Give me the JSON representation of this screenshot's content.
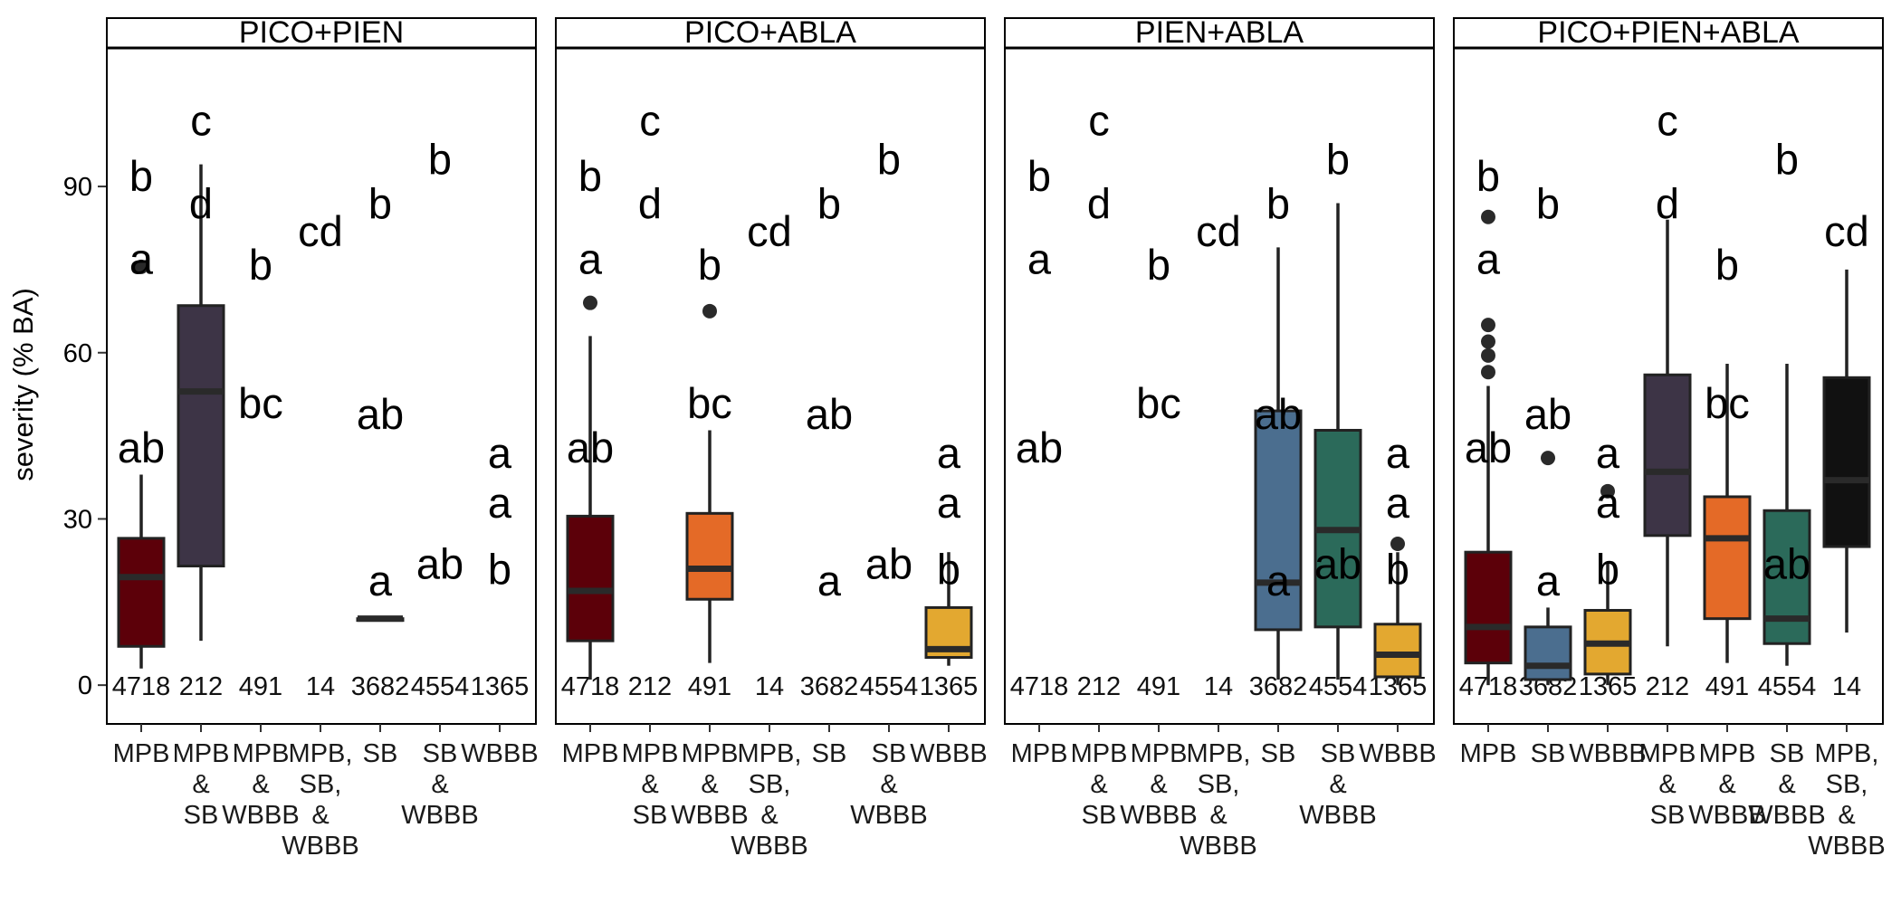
{
  "chart_data": {
    "type": "boxplot",
    "ylabel": "severity (% BA)",
    "ylim": [
      -7,
      115
    ],
    "y_ticks": [
      0,
      30,
      60,
      90
    ],
    "colors": {
      "MPB": "#5c0009",
      "MPB & SB": "#3d3446",
      "MPB & WBBB": "#e46a27",
      "MPB, SB, & WBBB": "#111111",
      "SB": "#4b6e8f",
      "SB & WBBB": "#2b6a5a",
      "WBBB": "#e3a830"
    },
    "panels": [
      {
        "title": "PICO+PIEN",
        "categories": [
          {
            "label_lines": [
              "MPB"
            ],
            "count": "4718",
            "box": {
              "q1": 7,
              "median": 19.5,
              "q3": 26.5,
              "lo": 3,
              "hi": 38,
              "outliers": [
                75.5
              ]
            }
          },
          {
            "label_lines": [
              "MPB",
              "&",
              "SB"
            ],
            "count": "212",
            "box": {
              "q1": 21.5,
              "median": 53,
              "q3": 68.5,
              "lo": 8,
              "hi": 94,
              "outliers": []
            }
          },
          {
            "label_lines": [
              "MPB",
              "&",
              "WBBB"
            ],
            "count": "491",
            "box": null
          },
          {
            "label_lines": [
              "MPB,",
              "SB,",
              "&",
              "WBBB"
            ],
            "count": "14",
            "box": null
          },
          {
            "label_lines": [
              "SB"
            ],
            "count": "3682",
            "box": {
              "q1": 12,
              "median": 12,
              "q3": 12,
              "lo": 12,
              "hi": 12,
              "outliers": []
            }
          },
          {
            "label_lines": [
              "SB",
              "&",
              "WBBB"
            ],
            "count": "4554",
            "box": null
          },
          {
            "label_lines": [
              "WBBB"
            ],
            "count": "1365",
            "box": null
          }
        ],
        "letters": [
          {
            "cat": 0,
            "y": 92,
            "text": "b"
          },
          {
            "cat": 0,
            "y": 77,
            "text": "a"
          },
          {
            "cat": 0,
            "y": 43,
            "text": "ab"
          },
          {
            "cat": 1,
            "y": 102,
            "text": "c"
          },
          {
            "cat": 1,
            "y": 87,
            "text": "d"
          },
          {
            "cat": 2,
            "y": 76,
            "text": "b"
          },
          {
            "cat": 2,
            "y": 51,
            "text": "bc"
          },
          {
            "cat": 3,
            "y": 82,
            "text": "cd"
          },
          {
            "cat": 4,
            "y": 87,
            "text": "b"
          },
          {
            "cat": 4,
            "y": 49,
            "text": "ab"
          },
          {
            "cat": 4,
            "y": 19,
            "text": "a"
          },
          {
            "cat": 5,
            "y": 95,
            "text": "b"
          },
          {
            "cat": 5,
            "y": 22,
            "text": "ab"
          },
          {
            "cat": 6,
            "y": 42,
            "text": "a"
          },
          {
            "cat": 6,
            "y": 33,
            "text": "a"
          },
          {
            "cat": 6,
            "y": 21,
            "text": "b"
          }
        ]
      },
      {
        "title": "PICO+ABLA",
        "categories": [
          {
            "label_lines": [
              "MPB"
            ],
            "count": "4718",
            "box": {
              "q1": 8,
              "median": 17,
              "q3": 30.5,
              "lo": 1,
              "hi": 63,
              "outliers": [
                69
              ]
            }
          },
          {
            "label_lines": [
              "MPB",
              "&",
              "SB"
            ],
            "count": "212",
            "box": null
          },
          {
            "label_lines": [
              "MPB",
              "&",
              "WBBB"
            ],
            "count": "491",
            "box": {
              "q1": 15.5,
              "median": 21,
              "q3": 31,
              "lo": 4,
              "hi": 46,
              "outliers": [
                67.5
              ]
            }
          },
          {
            "label_lines": [
              "MPB,",
              "SB,",
              "&",
              "WBBB"
            ],
            "count": "14",
            "box": null
          },
          {
            "label_lines": [
              "SB"
            ],
            "count": "3682",
            "box": null
          },
          {
            "label_lines": [
              "SB",
              "&",
              "WBBB"
            ],
            "count": "4554",
            "box": null
          },
          {
            "label_lines": [
              "WBBB"
            ],
            "count": "1365",
            "box": {
              "q1": 5,
              "median": 6.5,
              "q3": 14,
              "lo": 3.5,
              "hi": 24,
              "outliers": []
            }
          }
        ],
        "letters": [
          {
            "cat": 0,
            "y": 92,
            "text": "b"
          },
          {
            "cat": 0,
            "y": 77,
            "text": "a"
          },
          {
            "cat": 0,
            "y": 43,
            "text": "ab"
          },
          {
            "cat": 1,
            "y": 102,
            "text": "c"
          },
          {
            "cat": 1,
            "y": 87,
            "text": "d"
          },
          {
            "cat": 2,
            "y": 76,
            "text": "b"
          },
          {
            "cat": 2,
            "y": 51,
            "text": "bc"
          },
          {
            "cat": 3,
            "y": 82,
            "text": "cd"
          },
          {
            "cat": 4,
            "y": 87,
            "text": "b"
          },
          {
            "cat": 4,
            "y": 49,
            "text": "ab"
          },
          {
            "cat": 4,
            "y": 19,
            "text": "a"
          },
          {
            "cat": 5,
            "y": 95,
            "text": "b"
          },
          {
            "cat": 5,
            "y": 22,
            "text": "ab"
          },
          {
            "cat": 6,
            "y": 42,
            "text": "a"
          },
          {
            "cat": 6,
            "y": 33,
            "text": "a"
          },
          {
            "cat": 6,
            "y": 21,
            "text": "b"
          }
        ]
      },
      {
        "title": "PIEN+ABLA",
        "categories": [
          {
            "label_lines": [
              "MPB"
            ],
            "count": "4718",
            "box": null
          },
          {
            "label_lines": [
              "MPB",
              "&",
              "SB"
            ],
            "count": "212",
            "box": null
          },
          {
            "label_lines": [
              "MPB",
              "&",
              "WBBB"
            ],
            "count": "491",
            "box": null
          },
          {
            "label_lines": [
              "MPB,",
              "SB,",
              "&",
              "WBBB"
            ],
            "count": "14",
            "box": null
          },
          {
            "label_lines": [
              "SB"
            ],
            "count": "3682",
            "box": {
              "q1": 10,
              "median": 18.5,
              "q3": 49.5,
              "lo": 1,
              "hi": 79,
              "outliers": []
            }
          },
          {
            "label_lines": [
              "SB",
              "&",
              "WBBB"
            ],
            "count": "4554",
            "box": {
              "q1": 10.5,
              "median": 28,
              "q3": 46,
              "lo": 1,
              "hi": 87,
              "outliers": []
            }
          },
          {
            "label_lines": [
              "WBBB"
            ],
            "count": "1365",
            "box": {
              "q1": 1.5,
              "median": 5.5,
              "q3": 11,
              "lo": 0,
              "hi": 24,
              "outliers": [
                25.5
              ]
            }
          }
        ],
        "letters": [
          {
            "cat": 0,
            "y": 92,
            "text": "b"
          },
          {
            "cat": 0,
            "y": 77,
            "text": "a"
          },
          {
            "cat": 0,
            "y": 43,
            "text": "ab"
          },
          {
            "cat": 1,
            "y": 102,
            "text": "c"
          },
          {
            "cat": 1,
            "y": 87,
            "text": "d"
          },
          {
            "cat": 2,
            "y": 76,
            "text": "b"
          },
          {
            "cat": 2,
            "y": 51,
            "text": "bc"
          },
          {
            "cat": 3,
            "y": 82,
            "text": "cd"
          },
          {
            "cat": 4,
            "y": 87,
            "text": "b"
          },
          {
            "cat": 4,
            "y": 49,
            "text": "ab"
          },
          {
            "cat": 4,
            "y": 19,
            "text": "a"
          },
          {
            "cat": 5,
            "y": 95,
            "text": "b"
          },
          {
            "cat": 5,
            "y": 22,
            "text": "ab"
          },
          {
            "cat": 6,
            "y": 42,
            "text": "a"
          },
          {
            "cat": 6,
            "y": 33,
            "text": "a"
          },
          {
            "cat": 6,
            "y": 21,
            "text": "b"
          }
        ]
      },
      {
        "title": "PICO+PIEN+ABLA",
        "categories": [
          {
            "label_lines": [
              "MPB"
            ],
            "count": "4718",
            "box": {
              "q1": 4,
              "median": 10.5,
              "q3": 24,
              "lo": 0,
              "hi": 54,
              "outliers": [
                56.5,
                59.5,
                62,
                65,
                84.5
              ]
            }
          },
          {
            "label_lines": [
              "SB"
            ],
            "count": "3682",
            "box": {
              "q1": 1,
              "median": 3.5,
              "q3": 10.5,
              "lo": 0,
              "hi": 14,
              "outliers": [
                41
              ]
            }
          },
          {
            "label_lines": [
              "WBBB"
            ],
            "count": "1365",
            "box": {
              "q1": 2,
              "median": 7.5,
              "q3": 13.5,
              "lo": 0,
              "hi": 22,
              "outliers": [
                35
              ]
            }
          },
          {
            "label_lines": [
              "MPB",
              "&",
              "SB"
            ],
            "count": "212",
            "box": {
              "q1": 27,
              "median": 38.5,
              "q3": 56,
              "lo": 7,
              "hi": 84,
              "outliers": []
            }
          },
          {
            "label_lines": [
              "MPB",
              "&",
              "WBBB"
            ],
            "count": "491",
            "box": {
              "q1": 12,
              "median": 26.5,
              "q3": 34,
              "lo": 4,
              "hi": 58,
              "outliers": []
            }
          },
          {
            "label_lines": [
              "SB",
              "&",
              "WBBB"
            ],
            "count": "4554",
            "box": {
              "q1": 7.5,
              "median": 12,
              "q3": 31.5,
              "lo": 3.5,
              "hi": 58,
              "outliers": []
            }
          },
          {
            "label_lines": [
              "MPB,",
              "SB,",
              "&",
              "WBBB"
            ],
            "count": "14",
            "box": {
              "q1": 25,
              "median": 37,
              "q3": 55.5,
              "lo": 9.5,
              "hi": 75,
              "outliers": []
            }
          }
        ],
        "letters": [
          {
            "cat": 0,
            "y": 92,
            "text": "b"
          },
          {
            "cat": 0,
            "y": 77,
            "text": "a"
          },
          {
            "cat": 0,
            "y": 43,
            "text": "ab"
          },
          {
            "cat": 1,
            "y": 87,
            "text": "b"
          },
          {
            "cat": 1,
            "y": 49,
            "text": "ab"
          },
          {
            "cat": 1,
            "y": 19,
            "text": "a"
          },
          {
            "cat": 2,
            "y": 42,
            "text": "a"
          },
          {
            "cat": 2,
            "y": 33,
            "text": "a"
          },
          {
            "cat": 2,
            "y": 21,
            "text": "b"
          },
          {
            "cat": 3,
            "y": 102,
            "text": "c"
          },
          {
            "cat": 3,
            "y": 87,
            "text": "d"
          },
          {
            "cat": 4,
            "y": 76,
            "text": "b"
          },
          {
            "cat": 4,
            "y": 51,
            "text": "bc"
          },
          {
            "cat": 5,
            "y": 95,
            "text": "b"
          },
          {
            "cat": 5,
            "y": 22,
            "text": "ab"
          },
          {
            "cat": 6,
            "y": 82,
            "text": "cd"
          }
        ]
      }
    ]
  }
}
